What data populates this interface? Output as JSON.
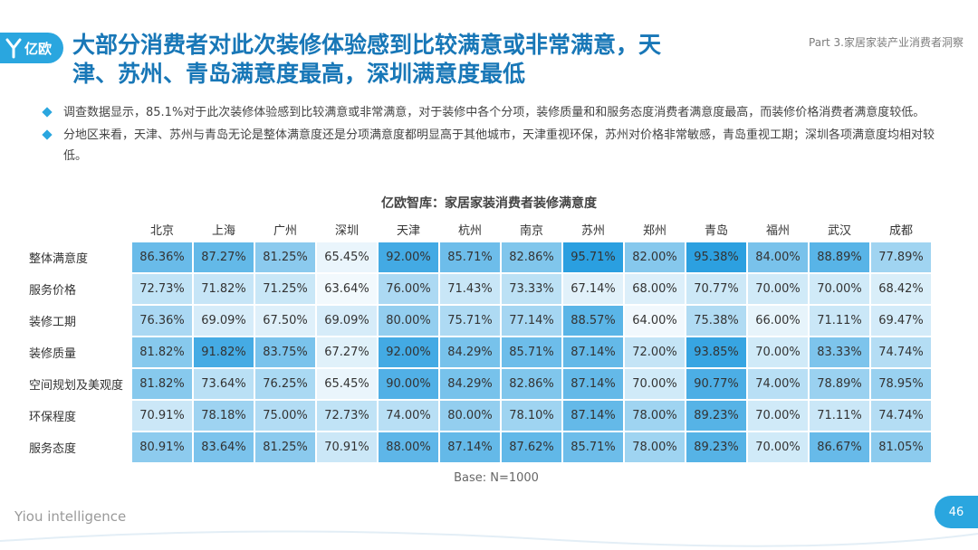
{
  "header": {
    "logo_text": "亿欧",
    "title_line1": "大部分消费者对此次装修体验感到比较满意或非常满意，天",
    "title_line2": "津、苏州、青岛满意度最高，深圳满意度最低",
    "part_label": "Part 3.家居家装产业消费者洞察"
  },
  "bullets": [
    "调查数据显示，85.1%对于此次装修体验感到比较满意或非常满意，对于装修中各个分项，装修质量和和服务态度消费者满意度最高，而装修价格消费者满意度较低。",
    "分地区来看，天津、苏州与青岛无论是整体满意度还是分项满意度都明显高于其他城市，天津重视环保，苏州对价格非常敏感，青岛重视工期；深圳各项满意度均相对较低。"
  ],
  "chart_data": {
    "type": "heatmap",
    "title": "亿欧智库：家居家装消费者装修满意度",
    "columns": [
      "北京",
      "上海",
      "广州",
      "深圳",
      "天津",
      "杭州",
      "南京",
      "苏州",
      "郑州",
      "青岛",
      "福州",
      "武汉",
      "成都"
    ],
    "rows": [
      "整体满意度",
      "服务价格",
      "装修工期",
      "装修质量",
      "空间规划及美观度",
      "环保程度",
      "服务态度"
    ],
    "values": [
      [
        86.36,
        87.27,
        81.25,
        65.45,
        92.0,
        85.71,
        82.86,
        95.71,
        82.0,
        95.38,
        84.0,
        88.89,
        77.89
      ],
      [
        72.73,
        71.82,
        71.25,
        63.64,
        76.0,
        71.43,
        73.33,
        67.14,
        68.0,
        70.77,
        70.0,
        70.0,
        68.42
      ],
      [
        76.36,
        69.09,
        67.5,
        69.09,
        80.0,
        75.71,
        77.14,
        88.57,
        64.0,
        75.38,
        66.0,
        71.11,
        69.47
      ],
      [
        81.82,
        91.82,
        83.75,
        67.27,
        92.0,
        84.29,
        85.71,
        87.14,
        72.0,
        93.85,
        70.0,
        83.33,
        74.74
      ],
      [
        81.82,
        73.64,
        76.25,
        65.45,
        90.0,
        84.29,
        82.86,
        87.14,
        70.0,
        90.77,
        74.0,
        78.89,
        78.95
      ],
      [
        70.91,
        78.18,
        75.0,
        72.73,
        74.0,
        80.0,
        78.1,
        87.14,
        78.0,
        89.23,
        70.0,
        71.11,
        74.74
      ],
      [
        80.91,
        83.64,
        81.25,
        70.91,
        88.0,
        87.14,
        87.62,
        85.71,
        78.0,
        89.23,
        70.0,
        86.67,
        81.05
      ]
    ],
    "value_suffix": "%",
    "color_scale": [
      "#ffffff",
      "#2a9fe0"
    ],
    "base_note": "Base: N=1000"
  },
  "footer": {
    "brand": "Yiou intelligence",
    "page_number": "46"
  },
  "colors": {
    "accent": "#2aa6df",
    "title": "#1877b7"
  }
}
